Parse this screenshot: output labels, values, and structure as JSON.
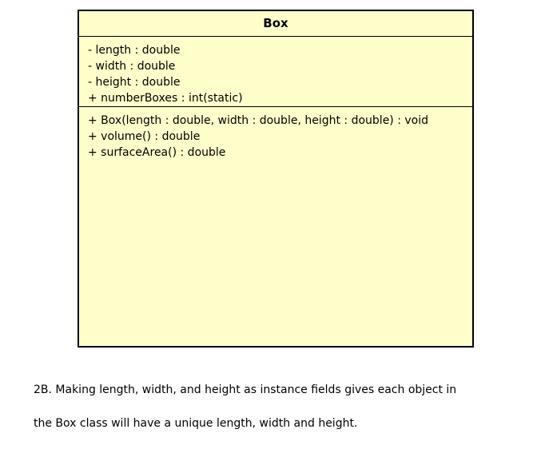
{
  "class_box": {
    "name": "Box",
    "attributes": [
      "- length : double",
      "- width : double",
      "- height : double",
      "+ numberBoxes : int(static)"
    ],
    "operations": [
      "+ Box(length : double, width : double, height : double) : void",
      "+ volume() : double",
      "+ surfaceArea() : double"
    ]
  },
  "caption": {
    "line1": "2B. Making length, width, and height as instance fields gives each object in",
    "line2": "the Box class will have a unique length, width and height."
  },
  "colors": {
    "class_fill": "#ffffcc",
    "border": "#000000"
  }
}
